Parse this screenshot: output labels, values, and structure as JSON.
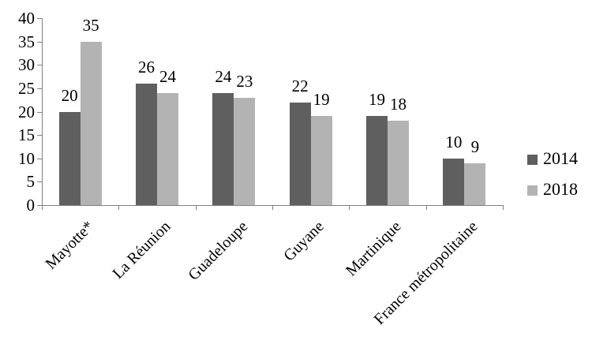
{
  "chart_data": {
    "type": "bar",
    "categories": [
      "Mayotte*",
      "La Réunion",
      "Guadeloupe",
      "Guyane",
      "Martinique",
      "France métropolitaine"
    ],
    "series": [
      {
        "name": "2014",
        "color": "#5f5f5f",
        "values": [
          20,
          26,
          24,
          22,
          19,
          10
        ]
      },
      {
        "name": "2018",
        "color": "#b3b3b3",
        "values": [
          35,
          24,
          23,
          19,
          18,
          9
        ]
      }
    ],
    "ylim": [
      0,
      40
    ],
    "yticks": [
      0,
      5,
      10,
      15,
      20,
      25,
      30,
      35,
      40
    ],
    "grid": false,
    "legend_position": "right",
    "legend_labels": [
      "2014",
      "2018"
    ],
    "axis_color": "#808080",
    "text_color": "#000000"
  }
}
